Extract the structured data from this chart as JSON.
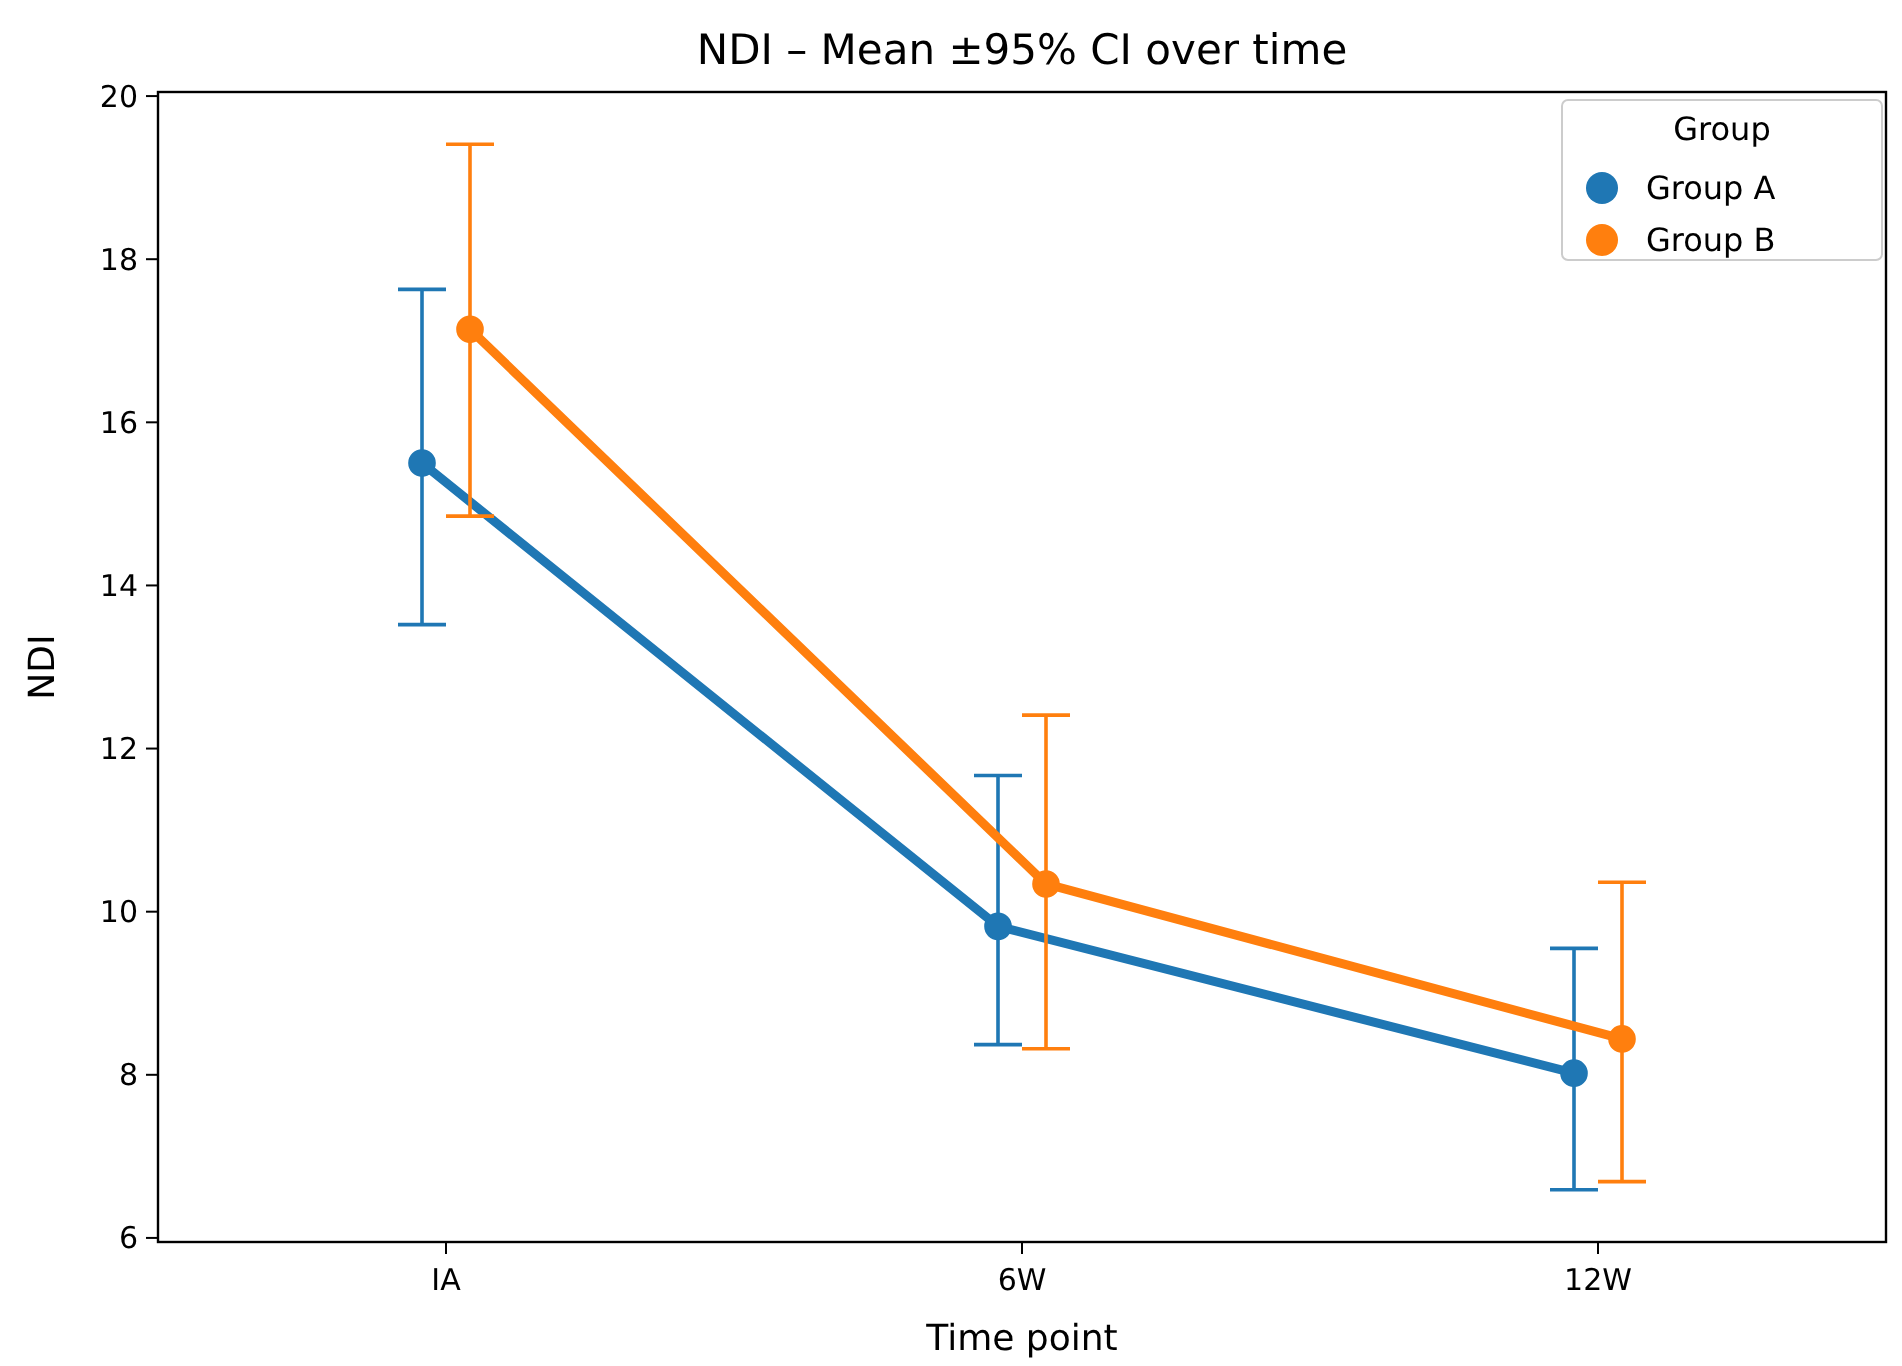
{
  "chart_data": {
    "type": "line",
    "title": "NDI – Mean ±95% CI over time",
    "xlabel": "Time point",
    "ylabel": "NDI",
    "legend_title": "Group",
    "categories": [
      "IA",
      "6W",
      "12W"
    ],
    "series": [
      {
        "name": "Group A",
        "color": "#1f77b4",
        "values": [
          15.5,
          9.82,
          8.02
        ],
        "errors": [
          [
            13.52,
            17.63
          ],
          [
            8.37,
            11.67
          ],
          [
            6.59,
            9.55
          ]
        ]
      },
      {
        "name": "Group B",
        "color": "#ff7f0e",
        "values": [
          17.14,
          10.34,
          8.44
        ],
        "errors": [
          [
            14.85,
            19.41
          ],
          [
            8.32,
            12.41
          ],
          [
            6.69,
            10.36
          ]
        ]
      }
    ],
    "ylim": [
      5.95,
      20.05
    ],
    "yticks": [
      6,
      8,
      10,
      12,
      14,
      16,
      18,
      20
    ],
    "grid": false,
    "legend": "top right",
    "marker": "circle",
    "line_style": "solid"
  }
}
